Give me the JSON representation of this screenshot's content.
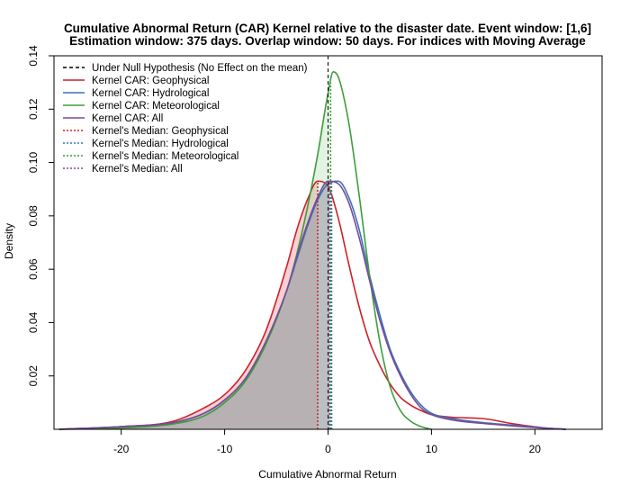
{
  "chart_data": {
    "type": "area",
    "title": "Cumulative Abnormal Return (CAR) Kernel relative to the disaster date. Event window: [1,6]",
    "subtitle": "Estimation window: 375 days. Overlap window: 50 days. For indices with Moving Average",
    "xlabel": "Cumulative Abnormal Return",
    "ylabel": "Density",
    "xlim": [
      -26.5,
      26.5
    ],
    "ylim": [
      0,
      0.14
    ],
    "x_ticks": [
      "-20",
      "-10",
      "0",
      "10",
      "20"
    ],
    "y_ticks": [
      "0.02",
      "0.04",
      "0.06",
      "0.08",
      "0.10",
      "0.12",
      "0.14"
    ],
    "legend_position": "top-left",
    "legend": [
      {
        "label": "Under Null Hypothesis (No Effect on the mean)",
        "color": "#000000",
        "style": "dashed"
      },
      {
        "label": "Kernel CAR: Geophysical",
        "color": "#CC2229",
        "style": "solid"
      },
      {
        "label": "Kernel CAR: Hydrological",
        "color": "#3A74B3",
        "style": "solid"
      },
      {
        "label": "Kernel CAR: Meteorological",
        "color": "#3E9E3A",
        "style": "solid"
      },
      {
        "label": "Kernel CAR: All",
        "color": "#7A4A9C",
        "style": "solid"
      },
      {
        "label": "Kernel's Median: Geophysical",
        "color": "#CC2229",
        "style": "dotted"
      },
      {
        "label": "Kernel's Median: Hydrological",
        "color": "#3A74B3",
        "style": "dotted"
      },
      {
        "label": "Kernel's Median: Meteorological",
        "color": "#3E9E3A",
        "style": "dotted"
      },
      {
        "label": "Kernel's Median: All",
        "color": "#7A4A9C",
        "style": "dotted"
      }
    ],
    "null_line_x": 0,
    "series": [
      {
        "name": "Kernel CAR: Geophysical",
        "color": "#CC2229",
        "fill": "rgba(228,120,130,0.35)",
        "median": -1.0,
        "x": [
          -26,
          -20,
          -15,
          -12,
          -10,
          -8,
          -6,
          -4,
          -3,
          -2,
          -1,
          0,
          1,
          2,
          3,
          4,
          5,
          6,
          7,
          8,
          9,
          10,
          12,
          15,
          18,
          21,
          23
        ],
        "y": [
          0.0,
          0.001,
          0.003,
          0.008,
          0.013,
          0.022,
          0.037,
          0.061,
          0.075,
          0.086,
          0.093,
          0.091,
          0.079,
          0.062,
          0.046,
          0.033,
          0.024,
          0.017,
          0.012,
          0.009,
          0.007,
          0.0055,
          0.0045,
          0.004,
          0.002,
          0.0005,
          0.0
        ]
      },
      {
        "name": "Kernel CAR: Hydrological",
        "color": "#3A74B3",
        "fill": "rgba(150,180,215,0.15)",
        "median": 0.35,
        "x": [
          -26,
          -20,
          -15,
          -12,
          -10,
          -8,
          -6,
          -4,
          -3,
          -2,
          -1,
          0,
          1,
          2,
          3,
          4,
          5,
          6,
          7,
          8,
          9,
          10,
          12,
          15,
          18,
          21,
          23
        ],
        "y": [
          0.0,
          0.001,
          0.0025,
          0.006,
          0.011,
          0.019,
          0.033,
          0.052,
          0.064,
          0.076,
          0.086,
          0.092,
          0.093,
          0.087,
          0.075,
          0.058,
          0.043,
          0.03,
          0.021,
          0.014,
          0.009,
          0.006,
          0.004,
          0.0025,
          0.0015,
          0.0005,
          0.0
        ]
      },
      {
        "name": "Kernel CAR: Meteorological",
        "color": "#3E9E3A",
        "fill": "rgba(160,215,160,0.3)",
        "median": 0.25,
        "x": [
          -26,
          -20,
          -15,
          -12,
          -10,
          -8,
          -6,
          -4,
          -3,
          -2,
          -1,
          0,
          0.5,
          1,
          2,
          3,
          4,
          5,
          6,
          7,
          8,
          9,
          10
        ],
        "y": [
          0.0,
          0.0005,
          0.002,
          0.005,
          0.01,
          0.018,
          0.032,
          0.052,
          0.066,
          0.083,
          0.103,
          0.126,
          0.134,
          0.132,
          0.115,
          0.088,
          0.058,
          0.033,
          0.016,
          0.007,
          0.003,
          0.001,
          0.0
        ]
      },
      {
        "name": "Kernel CAR: All",
        "color": "#7A4A9C",
        "fill": "rgba(150,140,160,0.45)",
        "median": 0.15,
        "x": [
          -26,
          -20,
          -15,
          -12,
          -10,
          -8,
          -6,
          -4,
          -3,
          -2,
          -1,
          0,
          1,
          2,
          3,
          4,
          5,
          6,
          7,
          8,
          9,
          10,
          12,
          15,
          18,
          21,
          23
        ],
        "y": [
          0.0,
          0.001,
          0.0025,
          0.006,
          0.011,
          0.019,
          0.033,
          0.052,
          0.065,
          0.077,
          0.087,
          0.093,
          0.092,
          0.085,
          0.072,
          0.056,
          0.041,
          0.029,
          0.02,
          0.013,
          0.008,
          0.0055,
          0.0035,
          0.0022,
          0.0012,
          0.0004,
          0.0
        ]
      }
    ]
  }
}
